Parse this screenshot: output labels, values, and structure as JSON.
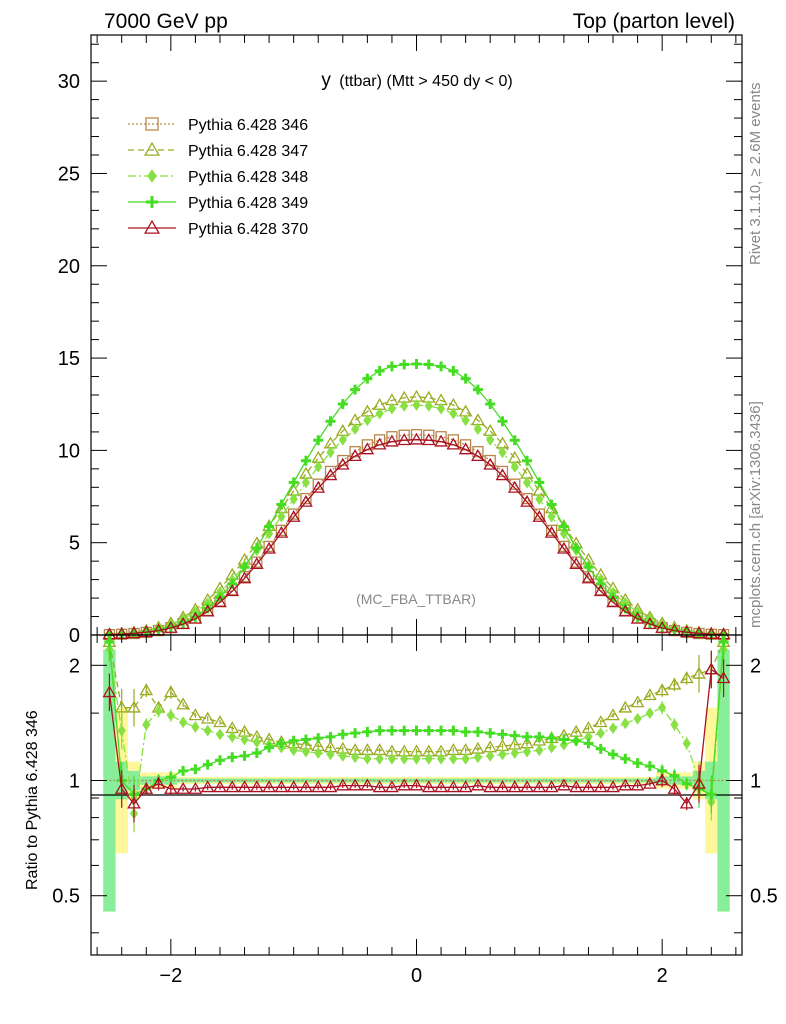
{
  "header": {
    "left": "7000 GeV pp",
    "right": "Top (parton level)"
  },
  "side": {
    "rivet": "Rivet 3.1.10, ≥ 2.6M events",
    "mcplots": "mcplots.cern.ch [arXiv:1306.3436]"
  },
  "chart_data": {
    "type": "line",
    "title_main": "y",
    "title_rest": "(ttbar) (Mtt > 450 dy < 0)",
    "annotation": "(MC_FBA_TTBAR)",
    "ratio_ylabel": "Ratio to Pythia 6.428 346",
    "xlim": [
      -2.65,
      2.65
    ],
    "main_ylim": [
      0,
      32.5
    ],
    "ratio_ylim": [
      0.35,
      2.4
    ],
    "ratio_log": true,
    "x_ticks": [
      -2,
      0,
      2
    ],
    "x_tick_labels": [
      "−2",
      "0",
      "2"
    ],
    "main_y_ticks": [
      0,
      5,
      10,
      15,
      20,
      25,
      30
    ],
    "main_y_tick_labels": [
      "0",
      "5",
      "10",
      "15",
      "20",
      "25",
      "30"
    ],
    "ratio_y_ticks": [
      0.5,
      1,
      2
    ],
    "ratio_y_tick_labels": [
      "0.5",
      "1",
      "2"
    ],
    "x": [
      -2.5,
      -2.4,
      -2.3,
      -2.2,
      -2.1,
      -2.0,
      -1.9,
      -1.8,
      -1.7,
      -1.6,
      -1.5,
      -1.4,
      -1.3,
      -1.2,
      -1.1,
      -1.0,
      -0.9,
      -0.8,
      -0.7,
      -0.6,
      -0.5,
      -0.4,
      -0.3,
      -0.2,
      -0.1,
      0.0,
      0.1,
      0.2,
      0.3,
      0.4,
      0.5,
      0.6,
      0.7,
      0.8,
      0.9,
      1.0,
      1.1,
      1.2,
      1.3,
      1.4,
      1.5,
      1.6,
      1.7,
      1.8,
      1.9,
      2.0,
      2.1,
      2.2,
      2.3,
      2.4,
      2.5
    ],
    "series": [
      {
        "name": "Pythia 6.428 346",
        "color": "#b8864a",
        "marker": "square",
        "dash": "2,2",
        "values": [
          0.02,
          0.04,
          0.08,
          0.14,
          0.24,
          0.4,
          0.62,
          0.92,
          1.33,
          1.84,
          2.45,
          3.16,
          3.95,
          4.8,
          5.67,
          6.55,
          7.39,
          8.17,
          8.86,
          9.45,
          9.93,
          10.3,
          10.57,
          10.74,
          10.82,
          10.85,
          10.82,
          10.74,
          10.57,
          10.3,
          9.93,
          9.45,
          8.86,
          8.17,
          7.39,
          6.55,
          5.67,
          4.8,
          3.95,
          3.16,
          2.45,
          1.84,
          1.33,
          0.92,
          0.62,
          0.4,
          0.24,
          0.14,
          0.08,
          0.04,
          0.02
        ],
        "ratio": [
          1.0,
          1.0,
          1.0,
          1.0,
          1.0,
          1.0,
          1.0,
          1.0,
          1.0,
          1.0,
          1.0,
          1.0,
          1.0,
          1.0,
          1.0,
          1.0,
          1.0,
          1.0,
          1.0,
          1.0,
          1.0,
          1.0,
          1.0,
          1.0,
          1.0,
          1.0,
          1.0,
          1.0,
          1.0,
          1.0,
          1.0,
          1.0,
          1.0,
          1.0,
          1.0,
          1.0,
          1.0,
          1.0,
          1.0,
          1.0,
          1.0,
          1.0,
          1.0,
          1.0,
          1.0,
          1.0,
          1.0,
          1.0,
          1.0,
          1.0,
          1.0
        ]
      },
      {
        "name": "Pythia 6.428 347",
        "color": "#9aaa22",
        "marker": "triangle",
        "dash": "6,4",
        "values": [
          0.04,
          0.07,
          0.14,
          0.24,
          0.41,
          0.64,
          0.96,
          1.38,
          1.9,
          2.53,
          3.26,
          4.07,
          4.96,
          5.9,
          6.86,
          7.81,
          8.73,
          9.59,
          10.37,
          11.05,
          11.63,
          12.1,
          12.46,
          12.71,
          12.85,
          12.9,
          12.85,
          12.71,
          12.46,
          12.1,
          11.63,
          11.05,
          10.37,
          9.59,
          8.73,
          7.81,
          6.86,
          5.9,
          4.96,
          4.07,
          3.26,
          2.53,
          1.9,
          1.38,
          0.96,
          0.64,
          0.41,
          0.24,
          0.14,
          0.07,
          0.04
        ],
        "ratio": [
          2.3,
          1.55,
          1.55,
          1.72,
          1.55,
          1.7,
          1.58,
          1.48,
          1.45,
          1.42,
          1.37,
          1.34,
          1.3,
          1.28,
          1.26,
          1.25,
          1.24,
          1.23,
          1.22,
          1.21,
          1.2,
          1.2,
          1.2,
          1.19,
          1.19,
          1.19,
          1.19,
          1.19,
          1.2,
          1.2,
          1.21,
          1.22,
          1.23,
          1.24,
          1.25,
          1.27,
          1.29,
          1.31,
          1.34,
          1.37,
          1.42,
          1.48,
          1.55,
          1.6,
          1.67,
          1.72,
          1.78,
          1.85,
          1.9,
          1.95,
          2.3
        ]
      },
      {
        "name": "Pythia 6.428 348",
        "color": "#88e044",
        "marker": "diamond",
        "dash": "8,3,2,3",
        "values": [
          0.04,
          0.07,
          0.13,
          0.22,
          0.37,
          0.58,
          0.87,
          1.25,
          1.73,
          2.31,
          2.99,
          3.75,
          4.59,
          5.49,
          6.42,
          7.36,
          8.26,
          9.11,
          9.89,
          10.57,
          11.15,
          11.63,
          12.0,
          12.26,
          12.41,
          12.46,
          12.41,
          12.26,
          12.0,
          11.63,
          11.15,
          10.57,
          9.89,
          9.11,
          8.26,
          7.36,
          6.42,
          5.49,
          4.59,
          3.75,
          2.99,
          2.31,
          1.73,
          1.25,
          0.87,
          0.58,
          0.37,
          0.22,
          0.13,
          0.07,
          0.04
        ],
        "ratio": [
          2.2,
          1.35,
          0.82,
          1.4,
          1.52,
          1.48,
          1.42,
          1.38,
          1.35,
          1.32,
          1.3,
          1.28,
          1.26,
          1.24,
          1.22,
          1.2,
          1.19,
          1.18,
          1.17,
          1.16,
          1.15,
          1.14,
          1.14,
          1.14,
          1.14,
          1.14,
          1.14,
          1.14,
          1.14,
          1.14,
          1.15,
          1.16,
          1.17,
          1.18,
          1.19,
          1.2,
          1.22,
          1.24,
          1.27,
          1.3,
          1.33,
          1.37,
          1.41,
          1.45,
          1.5,
          1.55,
          1.4,
          1.25,
          1.0,
          0.88,
          2.2
        ]
      },
      {
        "name": "Pythia 6.428 349",
        "color": "#44dd22",
        "marker": "cross",
        "dash": "",
        "values": [
          0.03,
          0.05,
          0.09,
          0.16,
          0.26,
          0.42,
          0.66,
          0.98,
          1.44,
          2.03,
          2.77,
          3.67,
          4.71,
          5.88,
          7.07,
          8.27,
          9.44,
          10.55,
          11.58,
          12.51,
          13.29,
          13.89,
          14.31,
          14.55,
          14.65,
          14.68,
          14.65,
          14.55,
          14.31,
          13.89,
          13.29,
          12.51,
          11.58,
          10.55,
          9.44,
          8.27,
          7.07,
          5.88,
          4.71,
          3.67,
          2.77,
          2.03,
          1.44,
          0.98,
          0.66,
          0.42,
          0.26,
          0.16,
          0.09,
          0.05,
          0.03
        ],
        "ratio": [
          2.3,
          1.0,
          0.92,
          0.95,
          1.0,
          1.02,
          1.06,
          1.07,
          1.1,
          1.13,
          1.15,
          1.16,
          1.18,
          1.22,
          1.25,
          1.27,
          1.28,
          1.29,
          1.3,
          1.32,
          1.33,
          1.34,
          1.35,
          1.35,
          1.35,
          1.35,
          1.35,
          1.35,
          1.35,
          1.34,
          1.34,
          1.33,
          1.32,
          1.31,
          1.3,
          1.3,
          1.29,
          1.28,
          1.27,
          1.25,
          1.21,
          1.17,
          1.14,
          1.11,
          1.09,
          1.06,
          1.03,
          0.98,
          0.95,
          0.92,
          2.3
        ]
      },
      {
        "name": "Pythia 6.428 370",
        "color": "#aa1122",
        "marker": "triangle",
        "dash": "",
        "values": [
          0.03,
          0.05,
          0.09,
          0.15,
          0.24,
          0.38,
          0.59,
          0.88,
          1.27,
          1.77,
          2.37,
          3.06,
          3.84,
          4.67,
          5.53,
          6.39,
          7.21,
          7.97,
          8.65,
          9.22,
          9.69,
          10.05,
          10.31,
          10.47,
          10.55,
          10.58,
          10.55,
          10.47,
          10.31,
          10.05,
          9.69,
          9.22,
          8.65,
          7.97,
          7.21,
          6.39,
          5.53,
          4.67,
          3.84,
          3.06,
          2.37,
          1.77,
          1.27,
          0.88,
          0.59,
          0.38,
          0.24,
          0.15,
          0.09,
          0.05,
          0.03
        ],
        "ratio": [
          1.7,
          0.95,
          0.87,
          0.95,
          0.98,
          0.95,
          0.95,
          0.95,
          0.96,
          0.96,
          0.96,
          0.96,
          0.96,
          0.96,
          0.96,
          0.96,
          0.96,
          0.96,
          0.96,
          0.97,
          0.97,
          0.97,
          0.96,
          0.96,
          0.97,
          0.97,
          0.96,
          0.96,
          0.96,
          0.96,
          0.97,
          0.96,
          0.96,
          0.96,
          0.96,
          0.96,
          0.96,
          0.97,
          0.96,
          0.96,
          0.96,
          0.96,
          0.97,
          0.97,
          0.98,
          1.0,
          0.95,
          0.87,
          0.98,
          1.95,
          1.85
        ]
      }
    ]
  }
}
